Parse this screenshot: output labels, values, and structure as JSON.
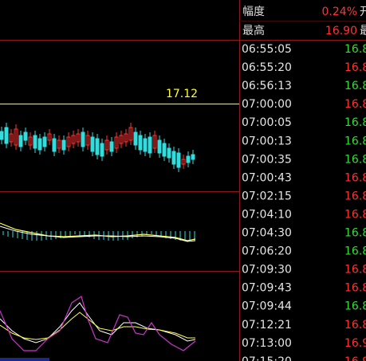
{
  "chart_panel": {
    "price_line_label": "17.12"
  },
  "quote_header": [
    {
      "label": "幅度",
      "value": "0.24%",
      "next": "开",
      "direction": "up"
    },
    {
      "label": "最高",
      "value": "16.90",
      "next": "最",
      "direction": "up"
    }
  ],
  "ticks": [
    {
      "time": "06:55:05",
      "price": "16.8",
      "direction": "down"
    },
    {
      "time": "06:55:20",
      "price": "16.8",
      "direction": "up"
    },
    {
      "time": "06:56:13",
      "price": "16.8",
      "direction": "down"
    },
    {
      "time": "07:00:00",
      "price": "16.8",
      "direction": "up"
    },
    {
      "time": "07:00:05",
      "price": "16.8",
      "direction": "down"
    },
    {
      "time": "07:00:13",
      "price": "16.8",
      "direction": "down"
    },
    {
      "time": "07:00:35",
      "price": "16.8",
      "direction": "down"
    },
    {
      "time": "07:00:43",
      "price": "16.8",
      "direction": "up"
    },
    {
      "time": "07:02:15",
      "price": "16.8",
      "direction": "up"
    },
    {
      "time": "07:04:10",
      "price": "16.8",
      "direction": "up"
    },
    {
      "time": "07:04:30",
      "price": "16.8",
      "direction": "down"
    },
    {
      "time": "07:06:20",
      "price": "16.8",
      "direction": "down"
    },
    {
      "time": "07:09:30",
      "price": "16.8",
      "direction": "up"
    },
    {
      "time": "07:09:43",
      "price": "16.8",
      "direction": "up"
    },
    {
      "time": "07:09:44",
      "price": "16.8",
      "direction": "down"
    },
    {
      "time": "07:12:21",
      "price": "16.8",
      "direction": "up"
    },
    {
      "time": "07:13:00",
      "price": "16.9",
      "direction": "up"
    },
    {
      "time": "07:15:20",
      "price": "16.9",
      "direction": "up"
    }
  ]
}
